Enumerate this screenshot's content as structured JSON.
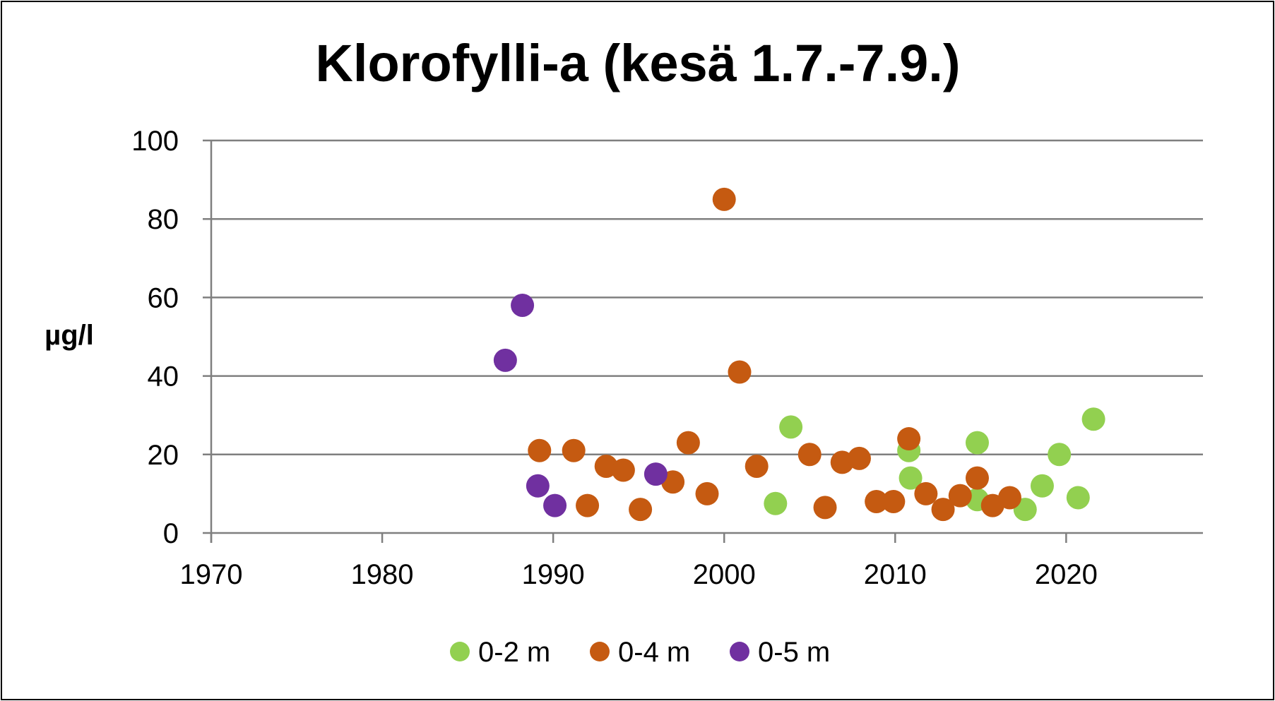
{
  "chart_data": {
    "type": "scatter",
    "title": "Klorofylli-a (kesä 1.7.-7.9.)",
    "ylabel": "µg/l",
    "xlabel": "",
    "xlim": [
      1970,
      2028
    ],
    "ylim": [
      0,
      100
    ],
    "x_ticks": [
      1970,
      1980,
      1990,
      2000,
      2010,
      2020
    ],
    "y_ticks": [
      0,
      20,
      40,
      60,
      80,
      100
    ],
    "grid": true,
    "legend_position": "bottom",
    "series": [
      {
        "name": "0-2 m",
        "color": "#92d050",
        "points": [
          [
            2003.0,
            7.5
          ],
          [
            2003.9,
            27
          ],
          [
            2010.8,
            21
          ],
          [
            2010.9,
            14
          ],
          [
            2014.8,
            23
          ],
          [
            2014.8,
            8.5
          ],
          [
            2017.6,
            6
          ],
          [
            2018.6,
            12
          ],
          [
            2019.6,
            20
          ],
          [
            2020.7,
            9
          ],
          [
            2021.6,
            29
          ]
        ]
      },
      {
        "name": "0-4 m",
        "color": "#c55a11",
        "points": [
          [
            1989.2,
            21
          ],
          [
            1991.2,
            21
          ],
          [
            1992.0,
            7
          ],
          [
            1993.1,
            17
          ],
          [
            1994.1,
            16
          ],
          [
            1995.1,
            6
          ],
          [
            1997.0,
            13
          ],
          [
            1997.9,
            23
          ],
          [
            1999.0,
            10
          ],
          [
            2000.0,
            85
          ],
          [
            2000.9,
            41
          ],
          [
            2001.9,
            17
          ],
          [
            2005.0,
            20
          ],
          [
            2005.9,
            6.5
          ],
          [
            2006.9,
            18
          ],
          [
            2007.9,
            19
          ],
          [
            2008.9,
            8
          ],
          [
            2009.9,
            8
          ],
          [
            2010.8,
            24
          ],
          [
            2011.8,
            10
          ],
          [
            2012.8,
            6
          ],
          [
            2013.8,
            9.5
          ],
          [
            2014.8,
            14
          ],
          [
            2015.7,
            7
          ],
          [
            2016.7,
            9
          ]
        ]
      },
      {
        "name": "0-5 m",
        "color": "#7030a0",
        "points": [
          [
            1987.2,
            44
          ],
          [
            1988.2,
            58
          ],
          [
            1989.1,
            12
          ],
          [
            1990.1,
            7
          ],
          [
            1996.0,
            15
          ]
        ]
      }
    ]
  }
}
